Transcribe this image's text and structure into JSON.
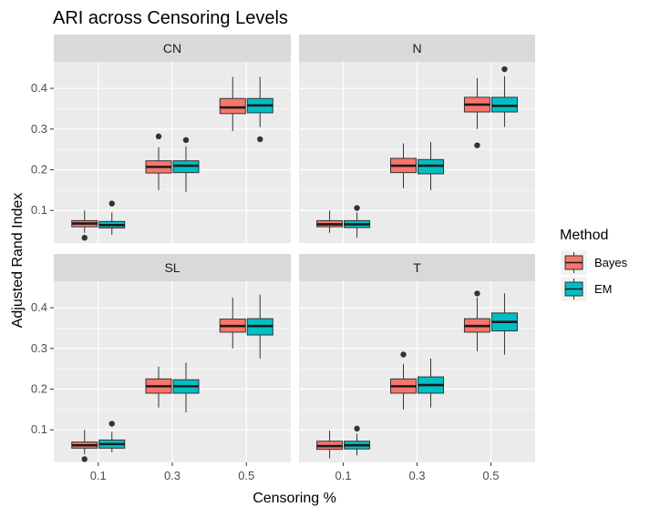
{
  "chart_data": {
    "type": "boxplot",
    "title": "ARI across Censoring Levels",
    "xlabel": "Censoring %",
    "ylabel": "Adjusted Rand Index",
    "categories": [
      "0.1",
      "0.3",
      "0.5"
    ],
    "y_ticks": [
      "0.1",
      "0.2",
      "0.3",
      "0.4"
    ],
    "ylim": [
      0.02,
      0.465
    ],
    "grid": true,
    "legend": {
      "title": "Method",
      "position": "right",
      "entries": [
        {
          "name": "Bayes",
          "color": "#F8766D"
        },
        {
          "name": "EM",
          "color": "#00BFC4"
        }
      ]
    },
    "facets": [
      {
        "name": "CN",
        "series": [
          {
            "name": "Bayes",
            "boxes": [
              {
                "min": 0.045,
                "q1": 0.06,
                "median": 0.068,
                "q3": 0.075,
                "max": 0.1,
                "outliers": [
                  0.033
                ]
              },
              {
                "min": 0.15,
                "q1": 0.192,
                "median": 0.207,
                "q3": 0.222,
                "max": 0.255,
                "outliers": [
                  0.282
                ]
              },
              {
                "min": 0.295,
                "q1": 0.338,
                "median": 0.353,
                "q3": 0.375,
                "max": 0.428,
                "outliers": []
              }
            ]
          },
          {
            "name": "EM",
            "boxes": [
              {
                "min": 0.04,
                "q1": 0.057,
                "median": 0.064,
                "q3": 0.073,
                "max": 0.095,
                "outliers": [
                  0.117
                ]
              },
              {
                "min": 0.145,
                "q1": 0.193,
                "median": 0.21,
                "q3": 0.222,
                "max": 0.258,
                "outliers": [
                  0.273
                ]
              },
              {
                "min": 0.305,
                "q1": 0.34,
                "median": 0.358,
                "q3": 0.375,
                "max": 0.428,
                "outliers": [
                  0.275
                ]
              }
            ]
          }
        ]
      },
      {
        "name": "N",
        "series": [
          {
            "name": "Bayes",
            "boxes": [
              {
                "min": 0.045,
                "q1": 0.06,
                "median": 0.066,
                "q3": 0.075,
                "max": 0.1,
                "outliers": []
              },
              {
                "min": 0.155,
                "q1": 0.193,
                "median": 0.21,
                "q3": 0.228,
                "max": 0.265,
                "outliers": []
              },
              {
                "min": 0.3,
                "q1": 0.342,
                "median": 0.36,
                "q3": 0.378,
                "max": 0.425,
                "outliers": [
                  0.26
                ]
              }
            ]
          },
          {
            "name": "EM",
            "boxes": [
              {
                "min": 0.033,
                "q1": 0.058,
                "median": 0.066,
                "q3": 0.075,
                "max": 0.095,
                "outliers": [
                  0.106
                ]
              },
              {
                "min": 0.15,
                "q1": 0.19,
                "median": 0.21,
                "q3": 0.225,
                "max": 0.268,
                "outliers": []
              },
              {
                "min": 0.305,
                "q1": 0.342,
                "median": 0.357,
                "q3": 0.378,
                "max": 0.43,
                "outliers": [
                  0.447
                ]
              }
            ]
          }
        ]
      },
      {
        "name": "SL",
        "series": [
          {
            "name": "Bayes",
            "boxes": [
              {
                "min": 0.04,
                "q1": 0.055,
                "median": 0.062,
                "q3": 0.07,
                "max": 0.1,
                "outliers": [
                  0.028
                ]
              },
              {
                "min": 0.155,
                "q1": 0.19,
                "median": 0.207,
                "q3": 0.225,
                "max": 0.255,
                "outliers": []
              },
              {
                "min": 0.3,
                "q1": 0.34,
                "median": 0.355,
                "q3": 0.372,
                "max": 0.425,
                "outliers": []
              }
            ]
          },
          {
            "name": "EM",
            "boxes": [
              {
                "min": 0.045,
                "q1": 0.055,
                "median": 0.065,
                "q3": 0.075,
                "max": 0.095,
                "outliers": [
                  0.115
                ]
              },
              {
                "min": 0.143,
                "q1": 0.19,
                "median": 0.207,
                "q3": 0.223,
                "max": 0.265,
                "outliers": []
              },
              {
                "min": 0.275,
                "q1": 0.333,
                "median": 0.355,
                "q3": 0.373,
                "max": 0.432,
                "outliers": []
              }
            ]
          }
        ]
      },
      {
        "name": "T",
        "series": [
          {
            "name": "Bayes",
            "boxes": [
              {
                "min": 0.03,
                "q1": 0.052,
                "median": 0.06,
                "q3": 0.072,
                "max": 0.098,
                "outliers": []
              },
              {
                "min": 0.15,
                "q1": 0.19,
                "median": 0.207,
                "q3": 0.225,
                "max": 0.262,
                "outliers": [
                  0.285
                ]
              },
              {
                "min": 0.293,
                "q1": 0.34,
                "median": 0.355,
                "q3": 0.373,
                "max": 0.425,
                "outliers": [
                  0.435
                ]
              }
            ]
          },
          {
            "name": "EM",
            "boxes": [
              {
                "min": 0.037,
                "q1": 0.053,
                "median": 0.062,
                "q3": 0.072,
                "max": 0.09,
                "outliers": [
                  0.103
                ]
              },
              {
                "min": 0.155,
                "q1": 0.19,
                "median": 0.21,
                "q3": 0.23,
                "max": 0.275,
                "outliers": []
              },
              {
                "min": 0.285,
                "q1": 0.343,
                "median": 0.365,
                "q3": 0.387,
                "max": 0.435,
                "outliers": []
              }
            ]
          }
        ]
      }
    ]
  }
}
